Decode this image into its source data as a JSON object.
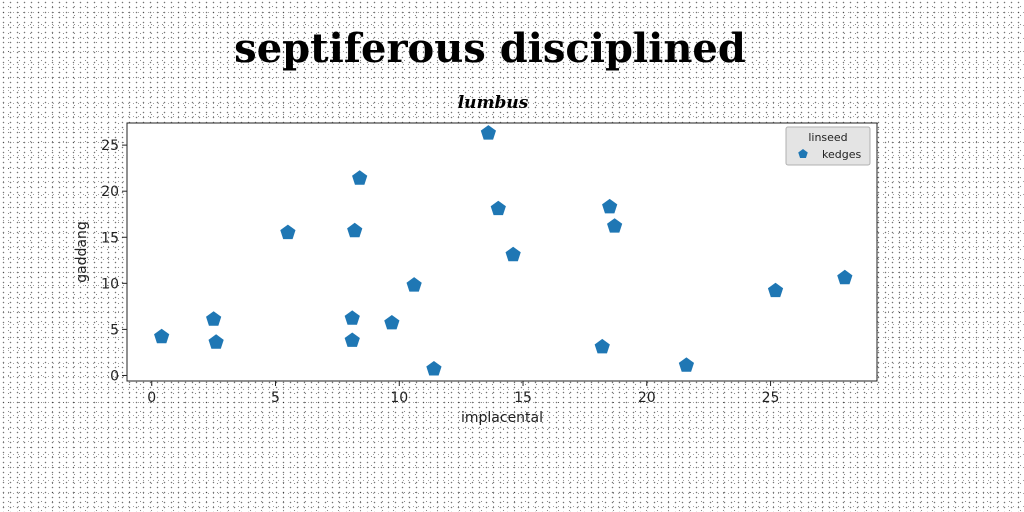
{
  "chart_data": {
    "type": "scatter",
    "title": "septiferous disciplined",
    "subtitle": "lumbus",
    "xlabel": "implacental",
    "ylabel": "gaddang",
    "xlim": [
      -1,
      29.3
    ],
    "ylim": [
      -0.6,
      27.4
    ],
    "xticks": [
      0,
      5,
      10,
      15,
      20,
      25
    ],
    "yticks": [
      0,
      5,
      10,
      15,
      20,
      25
    ],
    "grid": false,
    "legend": {
      "title": "linseed",
      "placement": "top-right"
    },
    "marker": "pentagon",
    "series": [
      {
        "name": "kedges",
        "color": "#1f77b4",
        "points": [
          {
            "x": 0.4,
            "y": 4.2
          },
          {
            "x": 2.5,
            "y": 6.1
          },
          {
            "x": 2.6,
            "y": 3.6
          },
          {
            "x": 5.5,
            "y": 15.5
          },
          {
            "x": 8.1,
            "y": 6.2
          },
          {
            "x": 8.1,
            "y": 3.8
          },
          {
            "x": 8.2,
            "y": 15.7
          },
          {
            "x": 8.4,
            "y": 21.4
          },
          {
            "x": 9.7,
            "y": 5.7
          },
          {
            "x": 10.6,
            "y": 9.8
          },
          {
            "x": 11.4,
            "y": 0.7
          },
          {
            "x": 13.6,
            "y": 26.3
          },
          {
            "x": 14.0,
            "y": 18.1
          },
          {
            "x": 14.6,
            "y": 13.1
          },
          {
            "x": 18.2,
            "y": 3.1
          },
          {
            "x": 18.5,
            "y": 18.3
          },
          {
            "x": 18.7,
            "y": 16.2
          },
          {
            "x": 21.6,
            "y": 1.1
          },
          {
            "x": 25.2,
            "y": 9.2
          },
          {
            "x": 28.0,
            "y": 10.6
          }
        ]
      }
    ]
  }
}
